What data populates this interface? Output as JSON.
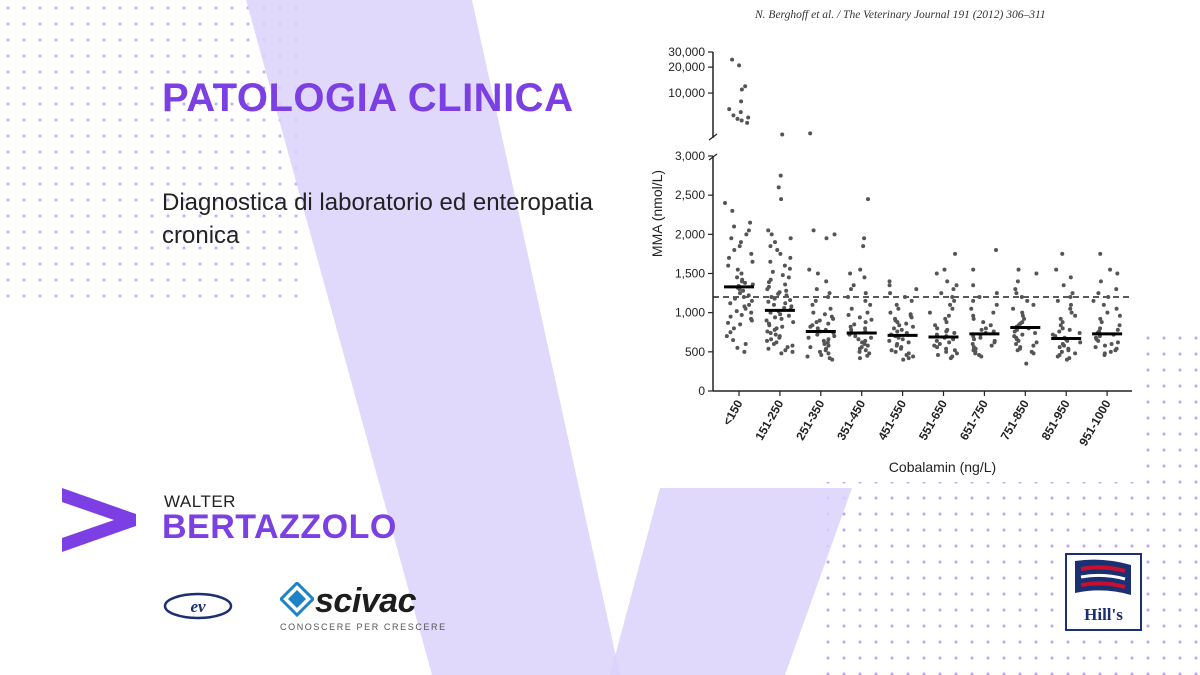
{
  "slide": {
    "title": "PATOLOGIA CLINICA",
    "subtitle": "Diagnostica di laboratorio ed enteropatia cronica",
    "author_first": "WALTER",
    "author_last": "BERTAZZOLO",
    "accent_color": "#7b3fe4",
    "ev_logo_text": "ev",
    "scivac_name": "scivac",
    "scivac_tagline": "CONOSCERE PER CRESCERE",
    "hills_name": "Hill's",
    "icons": [
      "brand-chevron-icon",
      "ev-logo-icon",
      "scivac-logo-icon",
      "hills-logo-icon"
    ]
  },
  "figure": {
    "citation": "N. Berghoff et al. / The Veterinary Journal 191 (2012) 306–311"
  },
  "chart_data": {
    "type": "scatter",
    "xlabel": "Cobalamin (ng/L)",
    "ylabel": "MMA (nmol/L)",
    "categories": [
      "<150",
      "151-250",
      "251-350",
      "351-450",
      "451-550",
      "551-650",
      "651-750",
      "751-850",
      "851-950",
      "951-1000"
    ],
    "y_ticks_lower": [
      "0",
      "500",
      "1,000",
      "1,500",
      "2,000",
      "2,500",
      "3,000"
    ],
    "y_ticks_upper": [
      "10,000",
      "20,000",
      "30,000"
    ],
    "ylim_lower": [
      0,
      3000
    ],
    "ylim_upper": [
      3000,
      30000
    ],
    "reference_line": 1200,
    "medians": [
      1330,
      1030,
      760,
      740,
      710,
      690,
      730,
      810,
      670,
      730
    ],
    "upper_points": [
      [
        24500,
        21000,
        12000,
        11000,
        8000,
        6500,
        6000,
        5500,
        5200,
        5000,
        4800,
        4500
      ],
      [
        3300
      ],
      [
        3400
      ],
      [],
      [],
      [],
      [],
      [],
      [],
      []
    ],
    "points": [
      [
        2400,
        2300,
        2150,
        2100,
        2050,
        2000,
        1950,
        1900,
        1850,
        1800,
        1750,
        1700,
        1650,
        1600,
        1550,
        1500,
        1450,
        1420,
        1400,
        1380,
        1360,
        1340,
        1320,
        1300,
        1280,
        1250,
        1220,
        1200,
        1180,
        1150,
        1120,
        1100,
        1080,
        1050,
        1020,
        1000,
        970,
        950,
        920,
        900,
        870,
        850,
        800,
        750,
        700,
        650,
        600,
        550,
        500
      ],
      [
        2750,
        2600,
        2450,
        2050,
        2000,
        1950,
        1900,
        1850,
        1800,
        1750,
        1700,
        1650,
        1600,
        1560,
        1520,
        1480,
        1450,
        1420,
        1390,
        1360,
        1330,
        1300,
        1280,
        1260,
        1240,
        1220,
        1200,
        1180,
        1160,
        1140,
        1120,
        1100,
        1080,
        1060,
        1040,
        1020,
        1000,
        980,
        960,
        940,
        920,
        900,
        880,
        860,
        840,
        820,
        800,
        780,
        760,
        740,
        720,
        700,
        680,
        660,
        640,
        620,
        600,
        580,
        560,
        540,
        520,
        500,
        480
      ],
      [
        2050,
        2000,
        1950,
        1550,
        1500,
        1400,
        1300,
        1250,
        1200,
        1150,
        1100,
        1050,
        1000,
        980,
        950,
        920,
        900,
        880,
        860,
        840,
        820,
        800,
        780,
        760,
        740,
        720,
        700,
        680,
        660,
        640,
        620,
        600,
        580,
        560,
        540,
        520,
        500,
        480,
        460,
        440,
        420,
        400
      ],
      [
        2450,
        1950,
        1850,
        1550,
        1500,
        1450,
        1350,
        1300,
        1250,
        1200,
        1150,
        1100,
        1050,
        1000,
        970,
        940,
        910,
        880,
        850,
        820,
        800,
        780,
        760,
        740,
        720,
        700,
        680,
        660,
        640,
        620,
        600,
        580,
        560,
        540,
        520,
        500,
        480,
        450,
        420
      ],
      [
        1400,
        1350,
        1300,
        1250,
        1200,
        1150,
        1100,
        1050,
        1000,
        980,
        960,
        940,
        920,
        900,
        880,
        860,
        840,
        820,
        800,
        780,
        760,
        740,
        720,
        700,
        680,
        660,
        640,
        620,
        600,
        580,
        560,
        540,
        520,
        500,
        480,
        460,
        440,
        420,
        400
      ],
      [
        1750,
        1550,
        1500,
        1400,
        1350,
        1300,
        1250,
        1200,
        1150,
        1100,
        1050,
        1000,
        960,
        920,
        880,
        840,
        800,
        780,
        760,
        740,
        720,
        700,
        680,
        660,
        640,
        620,
        600,
        580,
        560,
        540,
        520,
        500,
        480,
        460,
        440,
        420
      ],
      [
        1800,
        1550,
        1350,
        1250,
        1200,
        1150,
        1100,
        1050,
        1000,
        960,
        920,
        880,
        840,
        800,
        780,
        760,
        740,
        720,
        700,
        680,
        660,
        640,
        620,
        600,
        580,
        560,
        540,
        520,
        500,
        480,
        460,
        440
      ],
      [
        1550,
        1500,
        1400,
        1300,
        1250,
        1200,
        1150,
        1100,
        1050,
        1000,
        960,
        920,
        880,
        860,
        840,
        820,
        800,
        780,
        760,
        740,
        720,
        700,
        680,
        660,
        640,
        620,
        600,
        580,
        560,
        540,
        520,
        500,
        480,
        350
      ],
      [
        1750,
        1550,
        1450,
        1350,
        1250,
        1200,
        1150,
        1100,
        1050,
        1000,
        960,
        920,
        880,
        840,
        800,
        780,
        760,
        740,
        720,
        700,
        680,
        660,
        640,
        620,
        600,
        580,
        560,
        540,
        520,
        500,
        480,
        460,
        440,
        420,
        400
      ],
      [
        1750,
        1550,
        1500,
        1400,
        1300,
        1250,
        1200,
        1150,
        1100,
        1050,
        1000,
        960,
        920,
        880,
        840,
        800,
        780,
        760,
        740,
        720,
        700,
        680,
        660,
        640,
        620,
        600,
        580,
        560,
        540,
        520,
        500,
        480,
        460
      ]
    ]
  }
}
